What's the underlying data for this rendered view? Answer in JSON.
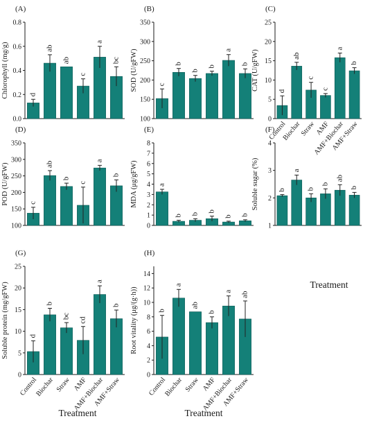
{
  "figure": {
    "categories": [
      "Control",
      "Biochar",
      "Straw",
      "AMF",
      "AMF+Biochar",
      "AMF+Straw"
    ],
    "xlabel": "Treatment",
    "bar_color": "#148078",
    "edge_color": "#0d5a55"
  },
  "chart_data": [
    {
      "type": "bar",
      "panel": "(A)",
      "ylabel": "Chlorophyll (mg/g)",
      "ylim": [
        0,
        0.8
      ],
      "yticks": [
        0.0,
        0.2,
        0.4,
        0.6,
        0.8
      ],
      "tick_decimals": 1,
      "values": [
        0.13,
        0.46,
        0.43,
        0.27,
        0.51,
        0.35
      ],
      "errors": [
        0.03,
        0.07,
        0.0,
        0.06,
        0.09,
        0.08
      ],
      "letters": [
        "d",
        "ab",
        "ab",
        "c",
        "a",
        "bc"
      ]
    },
    {
      "type": "bar",
      "panel": "(B)",
      "ylabel": "SOD (U/gFW)",
      "ylim": [
        100,
        350
      ],
      "yticks": [
        100,
        150,
        200,
        250,
        300,
        350
      ],
      "tick_decimals": 0,
      "values": [
        152,
        220,
        204,
        217,
        251,
        217
      ],
      "errors": [
        25,
        10,
        8,
        6,
        15,
        12
      ],
      "letters": [
        "c",
        "b",
        "b",
        "b",
        "a",
        "b"
      ]
    },
    {
      "type": "bar",
      "panel": "(C)",
      "ylabel": "CAT (U/gFW)",
      "ylim": [
        0,
        25
      ],
      "yticks": [
        0,
        5,
        10,
        15,
        20,
        25
      ],
      "tick_decimals": 0,
      "values": [
        3.4,
        13.6,
        7.4,
        6.0,
        15.8,
        12.4
      ],
      "errors": [
        2.5,
        1.0,
        2.0,
        0.5,
        1.2,
        0.8
      ],
      "letters": [
        "d",
        "ab",
        "c",
        "c",
        "a",
        "b"
      ]
    },
    {
      "type": "bar",
      "panel": "(D)",
      "ylabel": "POD (U/gFW)",
      "ylim": [
        100,
        350
      ],
      "yticks": [
        100,
        150,
        200,
        250,
        300,
        350
      ],
      "tick_decimals": 0,
      "values": [
        137,
        251,
        218,
        161,
        274,
        220
      ],
      "errors": [
        18,
        15,
        10,
        55,
        8,
        18
      ],
      "letters": [
        "c",
        "ab",
        "b",
        "c",
        "a",
        "b"
      ]
    },
    {
      "type": "bar",
      "panel": "(E)",
      "ylabel": "MDA (μg/gFW)",
      "ylim": [
        0,
        8
      ],
      "yticks": [
        0,
        1,
        2,
        3,
        4,
        5,
        6,
        7,
        8
      ],
      "tick_decimals": 0,
      "values": [
        3.25,
        0.4,
        0.5,
        0.65,
        0.33,
        0.45
      ],
      "errors": [
        0.25,
        0.1,
        0.15,
        0.25,
        0.08,
        0.1
      ],
      "letters": [
        "a",
        "b",
        "b",
        "b",
        "b",
        "b"
      ]
    },
    {
      "type": "bar",
      "panel": "(F)",
      "ylabel": "Soluble sugar (%)",
      "ylim": [
        1,
        4
      ],
      "yticks": [
        1,
        2,
        3,
        4
      ],
      "tick_decimals": 0,
      "values": [
        2.08,
        2.65,
        2.0,
        2.15,
        2.28,
        2.1
      ],
      "errors": [
        0.04,
        0.18,
        0.15,
        0.18,
        0.2,
        0.1
      ],
      "letters": [
        "b",
        "a",
        "b",
        "b",
        "ab",
        "b"
      ]
    },
    {
      "type": "bar",
      "panel": "(G)",
      "ylabel": "Soluble protein (mg/gFW)",
      "ylim": [
        0,
        25
      ],
      "yticks": [
        0,
        5,
        10,
        15,
        20,
        25
      ],
      "tick_decimals": 0,
      "values": [
        5.3,
        13.8,
        10.8,
        7.9,
        18.5,
        12.9
      ],
      "errors": [
        2.5,
        1.5,
        1.2,
        3.2,
        2.0,
        2.0
      ],
      "letters": [
        "d",
        "b",
        "bc",
        "cd",
        "a",
        "b"
      ]
    },
    {
      "type": "bar",
      "panel": "(H)",
      "ylabel": "Root vitality (μg/(g·h))",
      "ylim": [
        0,
        15
      ],
      "yticks": [
        0,
        2,
        4,
        6,
        8,
        10,
        12,
        14
      ],
      "tick_decimals": 0,
      "values": [
        5.2,
        10.6,
        8.7,
        7.2,
        9.5,
        7.7
      ],
      "errors": [
        3.0,
        1.2,
        0.0,
        0.8,
        1.4,
        2.5
      ],
      "letters": [
        "b",
        "a",
        "ab",
        "b",
        "a",
        "ab"
      ]
    }
  ]
}
